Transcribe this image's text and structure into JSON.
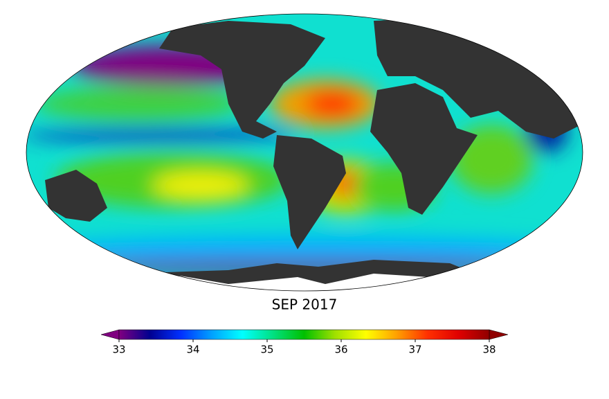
{
  "title": "SEP 2017",
  "colorbar": {
    "lim": [
      33,
      38
    ],
    "ticks": [
      33,
      34,
      35,
      36,
      37,
      38
    ],
    "colors": [
      "#800080",
      "#000090",
      "#0030ff",
      "#00a0ff",
      "#00ffff",
      "#00e080",
      "#00c000",
      "#a0e000",
      "#ffff00",
      "#ffa000",
      "#ff3000",
      "#e00000",
      "#900000"
    ]
  }
}
